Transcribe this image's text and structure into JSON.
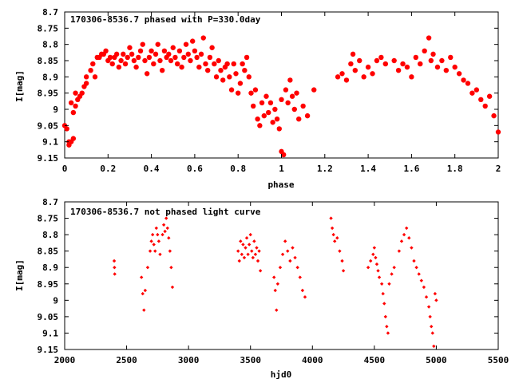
{
  "colors": {
    "points": "#ff0000",
    "axes": "#000000",
    "background": "#ffffff"
  },
  "chart_data": [
    {
      "type": "scatter",
      "title": "170306-8536.7 phased with P=330.0day",
      "xlabel": "phase",
      "ylabel": "I[mag]",
      "xlim": [
        0,
        2
      ],
      "ylim": [
        8.7,
        9.15
      ],
      "y_inverted": true,
      "grid": false,
      "marker": "filled-circle-large",
      "x_ticks": [
        "0",
        "0.2",
        "0.4",
        "0.6",
        "0.8",
        "1",
        "1.2",
        "1.4",
        "1.6",
        "1.8",
        "2"
      ],
      "y_ticks": [
        "8.7",
        "8.75",
        "8.8",
        "8.85",
        "8.9",
        "8.95",
        "9",
        "9.05",
        "9.1",
        "9.15"
      ],
      "points": [
        [
          0.0,
          9.05
        ],
        [
          0.01,
          9.06
        ],
        [
          0.02,
          9.1
        ],
        [
          0.02,
          9.11
        ],
        [
          0.03,
          9.1
        ],
        [
          0.04,
          9.09
        ],
        [
          0.03,
          8.98
        ],
        [
          0.04,
          9.01
        ],
        [
          0.05,
          8.99
        ],
        [
          0.06,
          8.97
        ],
        [
          0.07,
          8.96
        ],
        [
          0.08,
          8.95
        ],
        [
          0.05,
          8.95
        ],
        [
          0.09,
          8.93
        ],
        [
          0.1,
          8.92
        ],
        [
          0.1,
          8.9
        ],
        [
          0.12,
          8.88
        ],
        [
          0.13,
          8.86
        ],
        [
          0.14,
          8.9
        ],
        [
          0.15,
          8.84
        ],
        [
          0.16,
          8.84
        ],
        [
          0.17,
          8.83
        ],
        [
          0.18,
          8.83
        ],
        [
          0.19,
          8.82
        ],
        [
          0.2,
          8.85
        ],
        [
          0.21,
          8.84
        ],
        [
          0.22,
          8.86
        ],
        [
          0.23,
          8.84
        ],
        [
          0.24,
          8.83
        ],
        [
          0.25,
          8.87
        ],
        [
          0.26,
          8.85
        ],
        [
          0.27,
          8.83
        ],
        [
          0.28,
          8.86
        ],
        [
          0.29,
          8.84
        ],
        [
          0.3,
          8.81
        ],
        [
          0.31,
          8.83
        ],
        [
          0.32,
          8.85
        ],
        [
          0.33,
          8.87
        ],
        [
          0.34,
          8.84
        ],
        [
          0.35,
          8.82
        ],
        [
          0.36,
          8.8
        ],
        [
          0.37,
          8.85
        ],
        [
          0.38,
          8.89
        ],
        [
          0.39,
          8.84
        ],
        [
          0.4,
          8.82
        ],
        [
          0.41,
          8.86
        ],
        [
          0.42,
          8.83
        ],
        [
          0.43,
          8.8
        ],
        [
          0.44,
          8.85
        ],
        [
          0.45,
          8.88
        ],
        [
          0.46,
          8.82
        ],
        [
          0.47,
          8.84
        ],
        [
          0.48,
          8.83
        ],
        [
          0.49,
          8.85
        ],
        [
          0.5,
          8.81
        ],
        [
          0.51,
          8.84
        ],
        [
          0.52,
          8.86
        ],
        [
          0.53,
          8.82
        ],
        [
          0.54,
          8.87
        ],
        [
          0.55,
          8.84
        ],
        [
          0.56,
          8.8
        ],
        [
          0.57,
          8.83
        ],
        [
          0.58,
          8.85
        ],
        [
          0.59,
          8.79
        ],
        [
          0.6,
          8.82
        ],
        [
          0.61,
          8.84
        ],
        [
          0.62,
          8.87
        ],
        [
          0.63,
          8.83
        ],
        [
          0.64,
          8.78
        ],
        [
          0.65,
          8.86
        ],
        [
          0.66,
          8.88
        ],
        [
          0.67,
          8.84
        ],
        [
          0.68,
          8.81
        ],
        [
          0.69,
          8.86
        ],
        [
          0.7,
          8.9
        ],
        [
          0.71,
          8.85
        ],
        [
          0.72,
          8.88
        ],
        [
          0.73,
          8.91
        ],
        [
          0.74,
          8.87
        ],
        [
          0.75,
          8.86
        ],
        [
          0.76,
          8.9
        ],
        [
          0.77,
          8.94
        ],
        [
          0.78,
          8.86
        ],
        [
          0.79,
          8.89
        ],
        [
          0.8,
          8.95
        ],
        [
          0.81,
          8.92
        ],
        [
          0.82,
          8.86
        ],
        [
          0.83,
          8.88
        ],
        [
          0.84,
          8.84
        ],
        [
          0.85,
          8.9
        ],
        [
          0.86,
          8.95
        ],
        [
          0.87,
          8.99
        ],
        [
          0.88,
          8.94
        ],
        [
          0.89,
          9.03
        ],
        [
          0.9,
          9.05
        ],
        [
          0.91,
          8.98
        ],
        [
          0.92,
          9.02
        ],
        [
          0.93,
          8.96
        ],
        [
          0.94,
          9.01
        ],
        [
          0.95,
          8.98
        ],
        [
          0.96,
          9.04
        ],
        [
          0.97,
          9.0
        ],
        [
          0.98,
          9.03
        ],
        [
          0.99,
          9.06
        ],
        [
          1.0,
          9.13
        ],
        [
          1.01,
          9.14
        ],
        [
          1.0,
          8.97
        ],
        [
          1.02,
          8.94
        ],
        [
          1.03,
          8.98
        ],
        [
          1.04,
          8.91
        ],
        [
          1.05,
          8.96
        ],
        [
          1.06,
          9.0
        ],
        [
          1.07,
          8.95
        ],
        [
          1.08,
          9.03
        ],
        [
          1.1,
          8.99
        ],
        [
          1.12,
          9.02
        ],
        [
          1.15,
          8.94
        ],
        [
          1.26,
          8.9
        ],
        [
          1.28,
          8.89
        ],
        [
          1.3,
          8.91
        ],
        [
          1.32,
          8.86
        ],
        [
          1.33,
          8.83
        ],
        [
          1.34,
          8.88
        ],
        [
          1.36,
          8.85
        ],
        [
          1.38,
          8.9
        ],
        [
          1.4,
          8.87
        ],
        [
          1.42,
          8.89
        ],
        [
          1.44,
          8.85
        ],
        [
          1.46,
          8.84
        ],
        [
          1.48,
          8.86
        ],
        [
          1.52,
          8.85
        ],
        [
          1.54,
          8.88
        ],
        [
          1.56,
          8.86
        ],
        [
          1.58,
          8.87
        ],
        [
          1.6,
          8.9
        ],
        [
          1.62,
          8.84
        ],
        [
          1.64,
          8.86
        ],
        [
          1.66,
          8.82
        ],
        [
          1.68,
          8.78
        ],
        [
          1.69,
          8.85
        ],
        [
          1.7,
          8.83
        ],
        [
          1.72,
          8.87
        ],
        [
          1.74,
          8.85
        ],
        [
          1.76,
          8.88
        ],
        [
          1.78,
          8.84
        ],
        [
          1.8,
          8.87
        ],
        [
          1.82,
          8.89
        ],
        [
          1.84,
          8.91
        ],
        [
          1.86,
          8.92
        ],
        [
          1.88,
          8.95
        ],
        [
          1.9,
          8.94
        ],
        [
          1.92,
          8.97
        ],
        [
          1.94,
          8.99
        ],
        [
          1.96,
          8.96
        ],
        [
          1.98,
          9.02
        ],
        [
          2.0,
          9.07
        ]
      ]
    },
    {
      "type": "scatter",
      "title": "170306-8536.7 not phased light curve",
      "xlabel": "hjd0",
      "ylabel": "I[mag]",
      "xlim": [
        2000,
        5500
      ],
      "ylim": [
        8.7,
        9.15
      ],
      "y_inverted": true,
      "grid": false,
      "marker": "small-diamond",
      "x_ticks": [
        "2000",
        "2500",
        "3000",
        "3500",
        "4000",
        "4500",
        "5000",
        "5500"
      ],
      "y_ticks": [
        "8.7",
        "8.75",
        "8.8",
        "8.85",
        "8.9",
        "8.95",
        "9",
        "9.05",
        "9.1",
        "9.15"
      ],
      "points": [
        [
          2400,
          8.88
        ],
        [
          2402,
          8.9
        ],
        [
          2404,
          8.92
        ],
        [
          2620,
          8.93
        ],
        [
          2630,
          8.98
        ],
        [
          2640,
          9.03
        ],
        [
          2650,
          8.97
        ],
        [
          2670,
          8.9
        ],
        [
          2690,
          8.85
        ],
        [
          2700,
          8.82
        ],
        [
          2710,
          8.8
        ],
        [
          2720,
          8.83
        ],
        [
          2730,
          8.85
        ],
        [
          2740,
          8.78
        ],
        [
          2750,
          8.8
        ],
        [
          2760,
          8.82
        ],
        [
          2770,
          8.86
        ],
        [
          2790,
          8.8
        ],
        [
          2800,
          8.77
        ],
        [
          2810,
          8.79
        ],
        [
          2820,
          8.75
        ],
        [
          2830,
          8.78
        ],
        [
          2840,
          8.81
        ],
        [
          2850,
          8.85
        ],
        [
          2860,
          8.9
        ],
        [
          2870,
          8.96
        ],
        [
          3400,
          8.85
        ],
        [
          3410,
          8.88
        ],
        [
          3420,
          8.82
        ],
        [
          3430,
          8.86
        ],
        [
          3440,
          8.83
        ],
        [
          3450,
          8.87
        ],
        [
          3460,
          8.84
        ],
        [
          3470,
          8.81
        ],
        [
          3480,
          8.86
        ],
        [
          3490,
          8.83
        ],
        [
          3500,
          8.8
        ],
        [
          3510,
          8.85
        ],
        [
          3520,
          8.87
        ],
        [
          3530,
          8.82
        ],
        [
          3540,
          8.86
        ],
        [
          3550,
          8.84
        ],
        [
          3560,
          8.88
        ],
        [
          3570,
          8.85
        ],
        [
          3580,
          8.91
        ],
        [
          3690,
          8.93
        ],
        [
          3700,
          8.97
        ],
        [
          3710,
          9.03
        ],
        [
          3720,
          8.95
        ],
        [
          3740,
          8.9
        ],
        [
          3760,
          8.86
        ],
        [
          3780,
          8.82
        ],
        [
          3800,
          8.85
        ],
        [
          3820,
          8.88
        ],
        [
          3840,
          8.84
        ],
        [
          3860,
          8.87
        ],
        [
          3880,
          8.9
        ],
        [
          3900,
          8.93
        ],
        [
          3920,
          8.97
        ],
        [
          3940,
          8.99
        ],
        [
          4150,
          8.75
        ],
        [
          4160,
          8.78
        ],
        [
          4170,
          8.8
        ],
        [
          4180,
          8.82
        ],
        [
          4200,
          8.81
        ],
        [
          4220,
          8.85
        ],
        [
          4240,
          8.88
        ],
        [
          4250,
          8.91
        ],
        [
          4450,
          8.9
        ],
        [
          4470,
          8.88
        ],
        [
          4490,
          8.86
        ],
        [
          4500,
          8.84
        ],
        [
          4510,
          8.87
        ],
        [
          4520,
          8.89
        ],
        [
          4530,
          8.91
        ],
        [
          4540,
          8.93
        ],
        [
          4560,
          8.95
        ],
        [
          4570,
          8.98
        ],
        [
          4580,
          9.01
        ],
        [
          4590,
          9.05
        ],
        [
          4600,
          9.08
        ],
        [
          4610,
          9.1
        ],
        [
          4620,
          8.95
        ],
        [
          4640,
          8.92
        ],
        [
          4660,
          8.9
        ],
        [
          4700,
          8.85
        ],
        [
          4720,
          8.82
        ],
        [
          4740,
          8.8
        ],
        [
          4760,
          8.78
        ],
        [
          4780,
          8.81
        ],
        [
          4800,
          8.84
        ],
        [
          4820,
          8.88
        ],
        [
          4840,
          8.9
        ],
        [
          4860,
          8.92
        ],
        [
          4880,
          8.94
        ],
        [
          4900,
          8.96
        ],
        [
          4920,
          8.99
        ],
        [
          4940,
          9.02
        ],
        [
          4950,
          9.05
        ],
        [
          4960,
          9.08
        ],
        [
          4970,
          9.1
        ],
        [
          4980,
          9.14
        ],
        [
          4990,
          8.98
        ],
        [
          5000,
          9.0
        ]
      ]
    }
  ]
}
